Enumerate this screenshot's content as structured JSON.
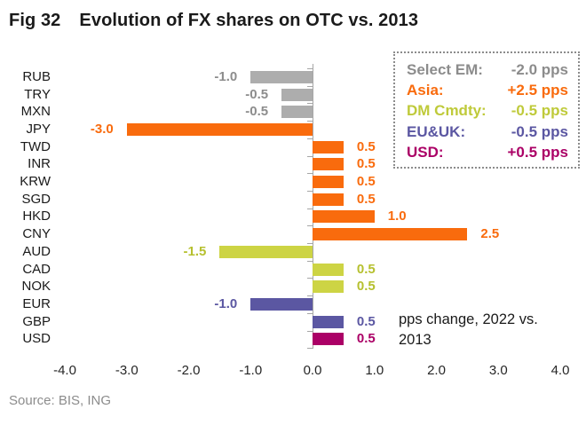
{
  "title": {
    "fig": "Fig 32",
    "main": "Evolution of FX shares on OTC vs. 2013"
  },
  "legend": {
    "items": [
      {
        "label": "Select EM:",
        "value": "-2.0 pps",
        "color": "#8c8c8c"
      },
      {
        "label": "Asia:",
        "value": "+2.5 pps",
        "color": "#f96b0d"
      },
      {
        "label": "DM Cmdty:",
        "value": "-0.5 pps",
        "color": "#bfca3a"
      },
      {
        "label": "EU&UK:",
        "value": "-0.5 pps",
        "color": "#5b57a2"
      },
      {
        "label": "USD:",
        "value": "+0.5 pps",
        "color": "#ab0066"
      }
    ]
  },
  "annotation": "pps change, 2022 vs. 2013",
  "source": "Source: BIS, ING",
  "chart_data": {
    "type": "bar",
    "orientation": "horizontal",
    "title": "Fig 32  Evolution of FX shares on OTC vs. 2013",
    "xlabel": "pps change, 2022 vs. 2013",
    "ylabel": "",
    "xlim": [
      -4.0,
      4.0
    ],
    "grid": false,
    "legend_position": "top-right",
    "categories": [
      "RUB",
      "TRY",
      "MXN",
      "JPY",
      "TWD",
      "INR",
      "KRW",
      "SGD",
      "HKD",
      "CNY",
      "AUD",
      "CAD",
      "NOK",
      "EUR",
      "GBP",
      "USD"
    ],
    "values": [
      -1.0,
      -0.5,
      -0.5,
      -3.0,
      0.5,
      0.5,
      0.5,
      0.5,
      1.0,
      2.5,
      -1.5,
      0.5,
      0.5,
      -1.0,
      0.5,
      0.5
    ],
    "value_labels": [
      "-1.0",
      "-0.5",
      "-0.5",
      "-3.0",
      "0.5",
      "0.5",
      "0.5",
      "0.5",
      "1.0",
      "2.5",
      "-1.5",
      "0.5",
      "0.5",
      "-1.0",
      "0.5",
      "0.5"
    ],
    "groups": [
      "em",
      "em",
      "em",
      "asia",
      "asia",
      "asia",
      "asia",
      "asia",
      "asia",
      "asia",
      "cmdty",
      "cmdty",
      "cmdty",
      "eu",
      "eu",
      "usd"
    ],
    "group_names": {
      "em": "Select EM",
      "asia": "Asia",
      "cmdty": "DM Cmdty",
      "eu": "EU&UK",
      "usd": "USD"
    },
    "bar_colors": {
      "em": "#adadad",
      "asia": "#f96b0d",
      "cmdty": "#cdd444",
      "eu": "#5b57a2",
      "usd": "#ab0066"
    },
    "label_colors": {
      "em": "#8c8c8c",
      "asia": "#f96b0d",
      "cmdty": "#b6c02f",
      "eu": "#5b57a2",
      "usd": "#ab0066"
    },
    "xticks": [
      "-4.0",
      "-3.0",
      "-2.0",
      "-1.0",
      "0.0",
      "1.0",
      "2.0",
      "3.0",
      "4.0"
    ],
    "xtick_values": [
      -4.0,
      -3.0,
      -2.0,
      -1.0,
      0.0,
      1.0,
      2.0,
      3.0,
      4.0
    ]
  }
}
